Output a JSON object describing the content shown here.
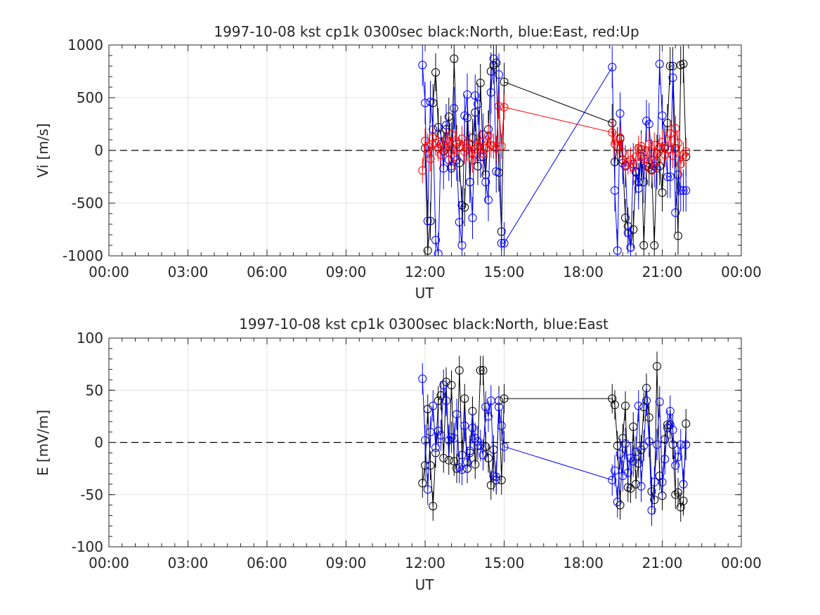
{
  "chart_data": [
    {
      "type": "line",
      "title": "1997-10-08 kst cp1k 0300sec black:North, blue:East, red:Up",
      "xlabel": "UT",
      "ylabel": "Vi [m/s]",
      "xlim_hours": [
        0,
        24
      ],
      "ylim": [
        -1000,
        1000
      ],
      "x_tick_labels": [
        "00:00",
        "03:00",
        "06:00",
        "09:00",
        "12:00",
        "15:00",
        "18:00",
        "21:00",
        "00:00"
      ],
      "y_ticks": [
        -1000,
        -500,
        0,
        500,
        1000
      ],
      "grid": true,
      "zero_line": "dashed",
      "series": [
        {
          "name": "North",
          "color": "#000000",
          "x": [
            12.0,
            12.1,
            12.2,
            12.3,
            12.4,
            12.5,
            12.6,
            12.7,
            12.8,
            12.9,
            13.0,
            13.1,
            13.2,
            13.3,
            13.4,
            13.5,
            13.6,
            13.7,
            13.8,
            13.9,
            14.0,
            14.1,
            14.2,
            14.3,
            14.4,
            14.5,
            14.6,
            14.7,
            14.8,
            14.9,
            15.0,
            19.1,
            19.2,
            19.3,
            19.4,
            19.5,
            19.6,
            19.7,
            19.8,
            19.9,
            20.0,
            20.1,
            20.2,
            20.3,
            20.4,
            20.5,
            20.6,
            20.7,
            20.8,
            20.9,
            21.0,
            21.1,
            21.2,
            21.3,
            21.4,
            21.5,
            21.6,
            21.7,
            21.8,
            21.9
          ],
          "values": [
            20,
            -950,
            -670,
            450,
            740,
            220,
            150,
            -10,
            200,
            320,
            -170,
            870,
            60,
            -120,
            -520,
            -540,
            310,
            -300,
            120,
            360,
            -150,
            640,
            -60,
            -230,
            200,
            750,
            810,
            830,
            -210,
            -770,
            650,
            260,
            -110,
            40,
            110,
            -90,
            -640,
            -720,
            -920,
            -750,
            -200,
            -300,
            10,
            -900,
            -150,
            -160,
            -180,
            -900,
            -30,
            -150,
            -400,
            20,
            260,
            800,
            800,
            20,
            -810,
            810,
            820,
            -60
          ],
          "err": 180
        },
        {
          "name": "East",
          "color": "#0000ff",
          "x": [
            11.9,
            12.0,
            12.1,
            12.2,
            12.3,
            12.4,
            12.5,
            12.6,
            12.7,
            12.8,
            12.9,
            13.0,
            13.1,
            13.2,
            13.3,
            13.4,
            13.5,
            13.6,
            13.7,
            13.8,
            13.9,
            14.0,
            14.1,
            14.2,
            14.3,
            14.4,
            14.5,
            14.6,
            14.7,
            14.8,
            14.9,
            15.0,
            19.1,
            19.2,
            19.3,
            19.4,
            19.5,
            19.6,
            19.7,
            19.8,
            19.9,
            20.0,
            20.1,
            20.2,
            20.3,
            20.4,
            20.5,
            20.6,
            20.7,
            20.8,
            20.9,
            21.0,
            21.1,
            21.2,
            21.3,
            21.4,
            21.5,
            21.6,
            21.7,
            21.8,
            21.9
          ],
          "values": [
            810,
            450,
            -670,
            460,
            200,
            -850,
            -980,
            60,
            -170,
            240,
            -90,
            -150,
            400,
            -90,
            -680,
            -900,
            330,
            530,
            -300,
            -640,
            520,
            440,
            -60,
            150,
            -300,
            -470,
            550,
            870,
            -200,
            720,
            -880,
            -880,
            790,
            -380,
            -950,
            350,
            -120,
            -150,
            -780,
            -920,
            -130,
            -210,
            -360,
            -60,
            -300,
            280,
            250,
            -90,
            -150,
            -170,
            820,
            330,
            40,
            -250,
            -250,
            690,
            -590,
            -230,
            -380,
            -380,
            -380
          ],
          "err": 200
        },
        {
          "name": "Up",
          "color": "#ff0000",
          "x": [
            11.9,
            12.0,
            12.1,
            12.2,
            12.3,
            12.4,
            12.5,
            12.6,
            12.7,
            12.8,
            12.9,
            13.0,
            13.1,
            13.2,
            13.3,
            13.4,
            13.5,
            13.6,
            13.7,
            13.8,
            13.9,
            14.0,
            14.1,
            14.2,
            14.3,
            14.4,
            14.5,
            14.6,
            14.7,
            14.8,
            14.9,
            15.0,
            19.1,
            19.2,
            19.3,
            19.4,
            19.5,
            19.6,
            19.7,
            19.8,
            19.9,
            20.0,
            20.1,
            20.2,
            20.3,
            20.4,
            20.5,
            20.6,
            20.7,
            20.8,
            20.9,
            21.0,
            21.1,
            21.2,
            21.3,
            21.4,
            21.5,
            21.6,
            21.7,
            21.8,
            21.9
          ],
          "values": [
            -190,
            90,
            40,
            -80,
            120,
            70,
            20,
            -40,
            50,
            90,
            -20,
            150,
            -60,
            80,
            30,
            110,
            -10,
            20,
            60,
            -90,
            10,
            40,
            80,
            -30,
            20,
            140,
            50,
            40,
            20,
            420,
            40,
            410,
            170,
            60,
            40,
            120,
            -20,
            -140,
            -110,
            -90,
            -160,
            -60,
            20,
            40,
            -80,
            -80,
            60,
            -190,
            50,
            -100,
            30,
            80,
            -40,
            10,
            160,
            -50,
            210,
            70,
            -130,
            -40,
            -10
          ],
          "err": 120
        }
      ]
    },
    {
      "type": "line",
      "title": "1997-10-08 kst cp1k 0300sec black:North, blue:East",
      "xlabel": "UT",
      "ylabel": "E [mV/m]",
      "xlim_hours": [
        0,
        24
      ],
      "ylim": [
        -100,
        100
      ],
      "x_tick_labels": [
        "00:00",
        "03:00",
        "06:00",
        "09:00",
        "12:00",
        "15:00",
        "18:00",
        "21:00",
        "00:00"
      ],
      "y_ticks": [
        -100,
        -50,
        0,
        50,
        100
      ],
      "grid": true,
      "zero_line": "dashed",
      "series": [
        {
          "name": "North",
          "color": "#000000",
          "x": [
            11.9,
            12.0,
            12.1,
            12.2,
            12.3,
            12.4,
            12.5,
            12.6,
            12.7,
            12.8,
            12.9,
            13.0,
            13.1,
            13.2,
            13.3,
            13.4,
            13.5,
            13.6,
            13.7,
            13.8,
            13.9,
            14.0,
            14.1,
            14.2,
            14.3,
            14.4,
            14.5,
            14.6,
            14.7,
            14.8,
            14.9,
            15.0,
            19.1,
            19.2,
            19.3,
            19.4,
            19.5,
            19.6,
            19.7,
            19.8,
            19.9,
            20.0,
            20.1,
            20.2,
            20.3,
            20.4,
            20.5,
            20.6,
            20.7,
            20.8,
            20.9,
            21.0,
            21.1,
            21.2,
            21.3,
            21.4,
            21.5,
            21.6,
            21.7,
            21.8,
            21.9
          ],
          "values": [
            -39,
            -22,
            32,
            -22,
            -61,
            -10,
            40,
            45,
            -15,
            58,
            -17,
            55,
            -18,
            -25,
            69,
            -12,
            42,
            -25,
            -10,
            30,
            -21,
            -3,
            69,
            69,
            -4,
            -15,
            -41,
            -7,
            -36,
            40,
            -36,
            42,
            42,
            36,
            -3,
            -60,
            4,
            35,
            -43,
            -44,
            15,
            -40,
            -20,
            -7,
            34,
            52,
            24,
            -47,
            -55,
            73,
            -32,
            -51,
            3,
            17,
            17,
            -2,
            -50,
            -48,
            -62,
            -56,
            18
          ],
          "err": 14
        },
        {
          "name": "East",
          "color": "#0000ff",
          "x": [
            11.9,
            12.0,
            12.1,
            12.2,
            12.3,
            12.4,
            12.5,
            12.6,
            12.7,
            12.8,
            12.9,
            13.0,
            13.1,
            13.2,
            13.3,
            13.4,
            13.5,
            13.6,
            13.7,
            13.8,
            13.9,
            14.0,
            14.1,
            14.2,
            14.3,
            14.4,
            14.5,
            14.6,
            14.7,
            14.8,
            14.9,
            15.0,
            19.1,
            19.2,
            19.3,
            19.4,
            19.5,
            19.6,
            19.7,
            19.8,
            19.9,
            20.0,
            20.1,
            20.2,
            20.3,
            20.4,
            20.5,
            20.6,
            20.7,
            20.8,
            20.9,
            21.0,
            21.1,
            21.2,
            21.3,
            21.4,
            21.5,
            21.6,
            21.7,
            21.8,
            21.9
          ],
          "values": [
            61,
            2,
            -45,
            10,
            35,
            -5,
            11,
            7,
            55,
            40,
            2,
            5,
            4,
            27,
            -24,
            -26,
            16,
            -19,
            -8,
            14,
            4,
            1,
            -3,
            -12,
            34,
            25,
            40,
            -32,
            -33,
            34,
            16,
            -4,
            -36,
            -27,
            -57,
            -11,
            -32,
            -1,
            -29,
            -15,
            -18,
            -9,
            35,
            -42,
            -3,
            40,
            1,
            -65,
            -38,
            -2,
            39,
            -38,
            -16,
            14,
            30,
            12,
            -22,
            -14,
            -2,
            -40,
            -2
          ],
          "err": 15
        }
      ]
    }
  ]
}
